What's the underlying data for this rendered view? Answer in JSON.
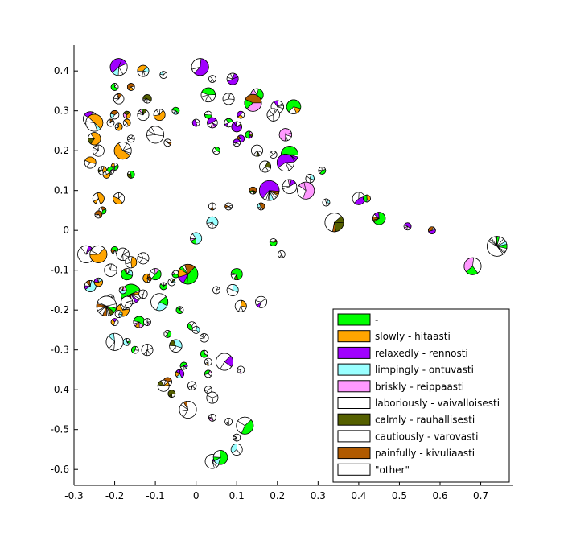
{
  "chart_data": {
    "type": "scatter",
    "title": "",
    "xlabel": "",
    "ylabel": "",
    "xlim": [
      -0.3,
      0.78
    ],
    "ylim": [
      -0.64,
      0.465
    ],
    "x_ticks": [
      "-0.3",
      "-0.2",
      "-0.1",
      "0",
      "0.1",
      "0.2",
      "0.3",
      "0.4",
      "0.5",
      "0.6",
      "0.7"
    ],
    "x_tick_values": [
      -0.3,
      -0.2,
      -0.1,
      0,
      0.1,
      0.2,
      0.3,
      0.4,
      0.5,
      0.6,
      0.7
    ],
    "y_ticks": [
      "0.4",
      "0.3",
      "0.2",
      "0.1",
      "0",
      "-0.1",
      "-0.2",
      "-0.3",
      "-0.4",
      "-0.5",
      "-0.6"
    ],
    "y_tick_values": [
      0.4,
      0.3,
      0.2,
      0.1,
      0,
      -0.1,
      -0.2,
      -0.3,
      -0.4,
      -0.5,
      -0.6
    ],
    "legend": {
      "placement": "bottom-right",
      "entries": [
        {
          "label": "-",
          "color": "#00ff00"
        },
        {
          "label": "slowly - hitaasti",
          "color": "#ffa500"
        },
        {
          "label": "relaxedly - rennosti",
          "color": "#a000ff"
        },
        {
          "label": "limpingly - ontuvasti",
          "color": "#99ffff"
        },
        {
          "label": "briskly - reippaasti",
          "color": "#ff99ff"
        },
        {
          "label": "laboriously - vaivalloisesti",
          "color": "#ffffff"
        },
        {
          "label": "calmly - rauhallisesti",
          "color": "#556000"
        },
        {
          "label": "cautiously - varovasti",
          "color": "#ffffff"
        },
        {
          "label": "painfully - kivuliaasti",
          "color": "#b05a00"
        },
        {
          "label": "\"other\"",
          "color": "#ffffff"
        }
      ]
    },
    "points": [
      {
        "x": -0.19,
        "y": 0.41,
        "r": 0.3,
        "dominant": 2
      },
      {
        "x": -0.13,
        "y": 0.4,
        "r": 0.2,
        "dominant": 1
      },
      {
        "x": -0.08,
        "y": 0.39,
        "r": 0.08,
        "dominant": 9
      },
      {
        "x": 0.01,
        "y": 0.41,
        "r": 0.3,
        "dominant": 2
      },
      {
        "x": 0.04,
        "y": 0.38,
        "r": 0.08,
        "dominant": 9
      },
      {
        "x": 0.09,
        "y": 0.38,
        "r": 0.2,
        "dominant": 2
      },
      {
        "x": 0.03,
        "y": 0.34,
        "r": 0.25,
        "dominant": 0
      },
      {
        "x": 0.15,
        "y": 0.34,
        "r": 0.22,
        "dominant": 0
      },
      {
        "x": -0.2,
        "y": 0.36,
        "r": 0.1,
        "dominant": 0
      },
      {
        "x": -0.16,
        "y": 0.36,
        "r": 0.08,
        "dominant": 8
      },
      {
        "x": -0.19,
        "y": 0.33,
        "r": 0.18,
        "dominant": 9
      },
      {
        "x": -0.12,
        "y": 0.33,
        "r": 0.15,
        "dominant": 6
      },
      {
        "x": 0.08,
        "y": 0.33,
        "r": 0.2,
        "dominant": 9
      },
      {
        "x": 0.14,
        "y": 0.32,
        "r": 0.3,
        "dominant": 4
      },
      {
        "x": 0.24,
        "y": 0.31,
        "r": 0.25,
        "dominant": 0
      },
      {
        "x": 0.2,
        "y": 0.31,
        "r": 0.22,
        "dominant": 9
      },
      {
        "x": -0.26,
        "y": 0.28,
        "r": 0.25,
        "dominant": 9
      },
      {
        "x": -0.25,
        "y": 0.27,
        "r": 0.3,
        "dominant": 1
      },
      {
        "x": -0.2,
        "y": 0.29,
        "r": 0.15,
        "dominant": 9
      },
      {
        "x": -0.17,
        "y": 0.29,
        "r": 0.1,
        "dominant": 1
      },
      {
        "x": -0.13,
        "y": 0.29,
        "r": 0.2,
        "dominant": 9
      },
      {
        "x": -0.09,
        "y": 0.29,
        "r": 0.2,
        "dominant": 1
      },
      {
        "x": -0.05,
        "y": 0.3,
        "r": 0.1,
        "dominant": 0
      },
      {
        "x": 0.03,
        "y": 0.29,
        "r": 0.1,
        "dominant": 0
      },
      {
        "x": 0.11,
        "y": 0.29,
        "r": 0.1,
        "dominant": 2
      },
      {
        "x": 0.19,
        "y": 0.29,
        "r": 0.22,
        "dominant": 9
      },
      {
        "x": -0.21,
        "y": 0.27,
        "r": 0.12,
        "dominant": 9
      },
      {
        "x": -0.19,
        "y": 0.26,
        "r": 0.1,
        "dominant": 1
      },
      {
        "x": -0.17,
        "y": 0.27,
        "r": 0.1,
        "dominant": 1
      },
      {
        "x": 0.0,
        "y": 0.27,
        "r": 0.12,
        "dominant": 2
      },
      {
        "x": 0.04,
        "y": 0.27,
        "r": 0.18,
        "dominant": 2
      },
      {
        "x": 0.08,
        "y": 0.27,
        "r": 0.15,
        "dominant": 9
      },
      {
        "x": 0.1,
        "y": 0.26,
        "r": 0.18,
        "dominant": 2
      },
      {
        "x": 0.11,
        "y": 0.23,
        "r": 0.12,
        "dominant": 2
      },
      {
        "x": 0.13,
        "y": 0.24,
        "r": 0.1,
        "dominant": 0
      },
      {
        "x": 0.22,
        "y": 0.24,
        "r": 0.22,
        "dominant": 4
      },
      {
        "x": -0.1,
        "y": 0.24,
        "r": 0.3,
        "dominant": 9
      },
      {
        "x": -0.16,
        "y": 0.23,
        "r": 0.1,
        "dominant": 9
      },
      {
        "x": -0.25,
        "y": 0.23,
        "r": 0.22,
        "dominant": 1
      },
      {
        "x": -0.24,
        "y": 0.2,
        "r": 0.2,
        "dominant": 9
      },
      {
        "x": -0.18,
        "y": 0.2,
        "r": 0.3,
        "dominant": 1
      },
      {
        "x": -0.07,
        "y": 0.22,
        "r": 0.1,
        "dominant": 9
      },
      {
        "x": 0.1,
        "y": 0.22,
        "r": 0.12,
        "dominant": 2
      },
      {
        "x": 0.05,
        "y": 0.2,
        "r": 0.1,
        "dominant": 0
      },
      {
        "x": 0.15,
        "y": 0.2,
        "r": 0.2,
        "dominant": 9
      },
      {
        "x": 0.23,
        "y": 0.19,
        "r": 0.3,
        "dominant": 0
      },
      {
        "x": 0.22,
        "y": 0.17,
        "r": 0.3,
        "dominant": 2
      },
      {
        "x": 0.19,
        "y": 0.19,
        "r": 0.1,
        "dominant": 9
      },
      {
        "x": -0.26,
        "y": 0.17,
        "r": 0.2,
        "dominant": 1
      },
      {
        "x": -0.23,
        "y": 0.15,
        "r": 0.15,
        "dominant": 1
      },
      {
        "x": -0.2,
        "y": 0.16,
        "r": 0.1,
        "dominant": 0
      },
      {
        "x": -0.21,
        "y": 0.15,
        "r": 0.08,
        "dominant": 0
      },
      {
        "x": -0.22,
        "y": 0.14,
        "r": 0.08,
        "dominant": 1
      },
      {
        "x": -0.16,
        "y": 0.14,
        "r": 0.12,
        "dominant": 0
      },
      {
        "x": 0.17,
        "y": 0.16,
        "r": 0.2,
        "dominant": 9
      },
      {
        "x": 0.31,
        "y": 0.15,
        "r": 0.1,
        "dominant": 0
      },
      {
        "x": 0.28,
        "y": 0.13,
        "r": 0.15,
        "dominant": 9
      },
      {
        "x": 0.18,
        "y": 0.1,
        "r": 0.35,
        "dominant": 2
      },
      {
        "x": 0.27,
        "y": 0.1,
        "r": 0.3,
        "dominant": 4
      },
      {
        "x": 0.23,
        "y": 0.11,
        "r": 0.25,
        "dominant": 9
      },
      {
        "x": -0.24,
        "y": 0.08,
        "r": 0.2,
        "dominant": 1
      },
      {
        "x": -0.19,
        "y": 0.08,
        "r": 0.2,
        "dominant": 1
      },
      {
        "x": -0.23,
        "y": 0.05,
        "r": 0.1,
        "dominant": 0
      },
      {
        "x": -0.24,
        "y": 0.04,
        "r": 0.1,
        "dominant": 8
      },
      {
        "x": 0.14,
        "y": 0.1,
        "r": 0.1,
        "dominant": 8
      },
      {
        "x": 0.16,
        "y": 0.06,
        "r": 0.1,
        "dominant": 8
      },
      {
        "x": 0.32,
        "y": 0.07,
        "r": 0.1,
        "dominant": 9
      },
      {
        "x": 0.4,
        "y": 0.08,
        "r": 0.22,
        "dominant": 2
      },
      {
        "x": 0.42,
        "y": 0.08,
        "r": 0.12,
        "dominant": 1
      },
      {
        "x": 0.45,
        "y": 0.03,
        "r": 0.22,
        "dominant": 0
      },
      {
        "x": 0.34,
        "y": 0.02,
        "r": 0.33,
        "dominant": 9
      },
      {
        "x": 0.52,
        "y": 0.01,
        "r": 0.12,
        "dominant": 2
      },
      {
        "x": 0.58,
        "y": 0.0,
        "r": 0.12,
        "dominant": 2
      },
      {
        "x": 0.04,
        "y": 0.06,
        "r": 0.1,
        "dominant": 9
      },
      {
        "x": 0.08,
        "y": 0.06,
        "r": 0.1,
        "dominant": 9
      },
      {
        "x": 0.04,
        "y": 0.02,
        "r": 0.2,
        "dominant": 3
      },
      {
        "x": 0.0,
        "y": -0.02,
        "r": 0.2,
        "dominant": 3
      },
      {
        "x": 0.19,
        "y": -0.03,
        "r": 0.12,
        "dominant": 0
      },
      {
        "x": 0.21,
        "y": -0.06,
        "r": 0.1,
        "dominant": 9
      },
      {
        "x": 0.74,
        "y": -0.04,
        "r": 0.35,
        "dominant": 9
      },
      {
        "x": 0.68,
        "y": -0.09,
        "r": 0.3,
        "dominant": 4
      },
      {
        "x": -0.27,
        "y": -0.06,
        "r": 0.3,
        "dominant": 9
      },
      {
        "x": -0.24,
        "y": -0.06,
        "r": 0.3,
        "dominant": 1
      },
      {
        "x": -0.2,
        "y": -0.05,
        "r": 0.12,
        "dominant": 0
      },
      {
        "x": -0.18,
        "y": -0.06,
        "r": 0.22,
        "dominant": 9
      },
      {
        "x": -0.16,
        "y": -0.08,
        "r": 0.2,
        "dominant": 1
      },
      {
        "x": -0.13,
        "y": -0.07,
        "r": 0.2,
        "dominant": 9
      },
      {
        "x": -0.21,
        "y": -0.1,
        "r": 0.22,
        "dominant": 9
      },
      {
        "x": -0.17,
        "y": -0.11,
        "r": 0.2,
        "dominant": 0
      },
      {
        "x": -0.12,
        "y": -0.12,
        "r": 0.15,
        "dominant": 1
      },
      {
        "x": -0.1,
        "y": -0.11,
        "r": 0.2,
        "dominant": 0
      },
      {
        "x": -0.05,
        "y": -0.11,
        "r": 0.12,
        "dominant": 9
      },
      {
        "x": -0.02,
        "y": -0.11,
        "r": 0.35,
        "dominant": 0
      },
      {
        "x": 0.1,
        "y": -0.11,
        "r": 0.2,
        "dominant": 0
      },
      {
        "x": -0.26,
        "y": -0.14,
        "r": 0.2,
        "dominant": 3
      },
      {
        "x": -0.24,
        "y": -0.13,
        "r": 0.15,
        "dominant": 1
      },
      {
        "x": -0.16,
        "y": -0.16,
        "r": 0.35,
        "dominant": 0
      },
      {
        "x": -0.13,
        "y": -0.16,
        "r": 0.15,
        "dominant": 9
      },
      {
        "x": -0.18,
        "y": -0.15,
        "r": 0.1,
        "dominant": 3
      },
      {
        "x": -0.08,
        "y": -0.14,
        "r": 0.12,
        "dominant": 0
      },
      {
        "x": -0.06,
        "y": -0.13,
        "r": 0.1,
        "dominant": 9
      },
      {
        "x": 0.05,
        "y": -0.15,
        "r": 0.1,
        "dominant": 9
      },
      {
        "x": 0.09,
        "y": -0.15,
        "r": 0.2,
        "dominant": 9
      },
      {
        "x": -0.21,
        "y": -0.17,
        "r": 0.12,
        "dominant": 9
      },
      {
        "x": -0.22,
        "y": -0.19,
        "r": 0.35,
        "dominant": 9
      },
      {
        "x": -0.18,
        "y": -0.2,
        "r": 0.22,
        "dominant": 1
      },
      {
        "x": -0.17,
        "y": -0.18,
        "r": 0.2,
        "dominant": 9
      },
      {
        "x": -0.09,
        "y": -0.18,
        "r": 0.3,
        "dominant": 9
      },
      {
        "x": -0.04,
        "y": -0.2,
        "r": 0.1,
        "dominant": 0
      },
      {
        "x": 0.11,
        "y": -0.19,
        "r": 0.2,
        "dominant": 9
      },
      {
        "x": 0.16,
        "y": -0.18,
        "r": 0.2,
        "dominant": 9
      },
      {
        "x": -0.2,
        "y": -0.23,
        "r": 0.12,
        "dominant": 1
      },
      {
        "x": -0.19,
        "y": -0.21,
        "r": 0.1,
        "dominant": 9
      },
      {
        "x": -0.14,
        "y": -0.23,
        "r": 0.2,
        "dominant": 0
      },
      {
        "x": -0.12,
        "y": -0.23,
        "r": 0.12,
        "dominant": 9
      },
      {
        "x": -0.07,
        "y": -0.26,
        "r": 0.1,
        "dominant": 0
      },
      {
        "x": -0.01,
        "y": -0.24,
        "r": 0.15,
        "dominant": 0
      },
      {
        "x": 0.0,
        "y": -0.25,
        "r": 0.12,
        "dominant": 9
      },
      {
        "x": 0.02,
        "y": -0.27,
        "r": 0.15,
        "dominant": 9
      },
      {
        "x": -0.17,
        "y": -0.28,
        "r": 0.12,
        "dominant": 3
      },
      {
        "x": -0.2,
        "y": -0.28,
        "r": 0.3,
        "dominant": 9
      },
      {
        "x": -0.15,
        "y": -0.3,
        "r": 0.12,
        "dominant": 0
      },
      {
        "x": -0.12,
        "y": -0.3,
        "r": 0.2,
        "dominant": 9
      },
      {
        "x": -0.05,
        "y": -0.29,
        "r": 0.22,
        "dominant": 3
      },
      {
        "x": 0.02,
        "y": -0.31,
        "r": 0.1,
        "dominant": 0
      },
      {
        "x": 0.03,
        "y": -0.33,
        "r": 0.12,
        "dominant": 9
      },
      {
        "x": 0.07,
        "y": -0.33,
        "r": 0.3,
        "dominant": 9
      },
      {
        "x": -0.03,
        "y": -0.34,
        "r": 0.1,
        "dominant": 0
      },
      {
        "x": -0.04,
        "y": -0.36,
        "r": 0.15,
        "dominant": 2
      },
      {
        "x": 0.03,
        "y": -0.36,
        "r": 0.12,
        "dominant": 0
      },
      {
        "x": 0.11,
        "y": -0.35,
        "r": 0.12,
        "dominant": 9
      },
      {
        "x": -0.07,
        "y": -0.38,
        "r": 0.15,
        "dominant": 8
      },
      {
        "x": -0.08,
        "y": -0.39,
        "r": 0.2,
        "dominant": 9
      },
      {
        "x": -0.01,
        "y": -0.39,
        "r": 0.15,
        "dominant": 9
      },
      {
        "x": 0.03,
        "y": -0.4,
        "r": 0.12,
        "dominant": 9
      },
      {
        "x": 0.04,
        "y": -0.42,
        "r": 0.2,
        "dominant": 9
      },
      {
        "x": -0.06,
        "y": -0.41,
        "r": 0.1,
        "dominant": 6
      },
      {
        "x": -0.02,
        "y": -0.45,
        "r": 0.3,
        "dominant": 9
      },
      {
        "x": 0.04,
        "y": -0.47,
        "r": 0.12,
        "dominant": 9
      },
      {
        "x": 0.08,
        "y": -0.48,
        "r": 0.1,
        "dominant": 9
      },
      {
        "x": 0.12,
        "y": -0.49,
        "r": 0.3,
        "dominant": 0
      },
      {
        "x": 0.1,
        "y": -0.55,
        "r": 0.2,
        "dominant": 3
      },
      {
        "x": 0.1,
        "y": -0.52,
        "r": 0.12,
        "dominant": 9
      },
      {
        "x": 0.04,
        "y": -0.58,
        "r": 0.25,
        "dominant": 9
      },
      {
        "x": 0.06,
        "y": -0.57,
        "r": 0.25,
        "dominant": 0
      }
    ]
  }
}
